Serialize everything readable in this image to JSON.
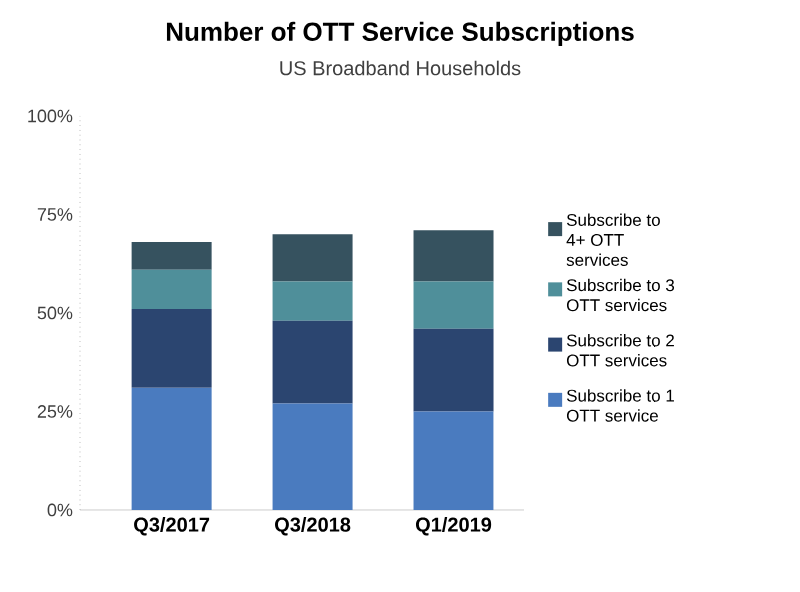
{
  "chart_data": {
    "type": "bar",
    "stacked": true,
    "title": "Number of OTT Service Subscriptions",
    "subtitle": "US Broadband Households",
    "categories": [
      "Q3/2017",
      "Q3/2018",
      "Q1/2019"
    ],
    "series": [
      {
        "name": "Subscribe to 1 OTT service",
        "color": "#4a7bbf",
        "values": [
          31,
          27,
          25
        ]
      },
      {
        "name": "Subscribe to 2 OTT services",
        "color": "#2b4570",
        "values": [
          20,
          21,
          21
        ]
      },
      {
        "name": "Subscribe to 3 OTT services",
        "color": "#4f8f9a",
        "values": [
          10,
          10,
          12
        ]
      },
      {
        "name": "Subscribe to 4+ OTT services",
        "color": "#36525f",
        "values": [
          7,
          12,
          13
        ]
      }
    ],
    "ylim": [
      0,
      100
    ],
    "yticks": [
      {
        "value": 0,
        "label": "0%"
      },
      {
        "value": 25,
        "label": "25%"
      },
      {
        "value": 50,
        "label": "50%"
      },
      {
        "value": 75,
        "label": "75%"
      },
      {
        "value": 100,
        "label": "100%"
      }
    ],
    "legend": "right",
    "grid": false
  }
}
